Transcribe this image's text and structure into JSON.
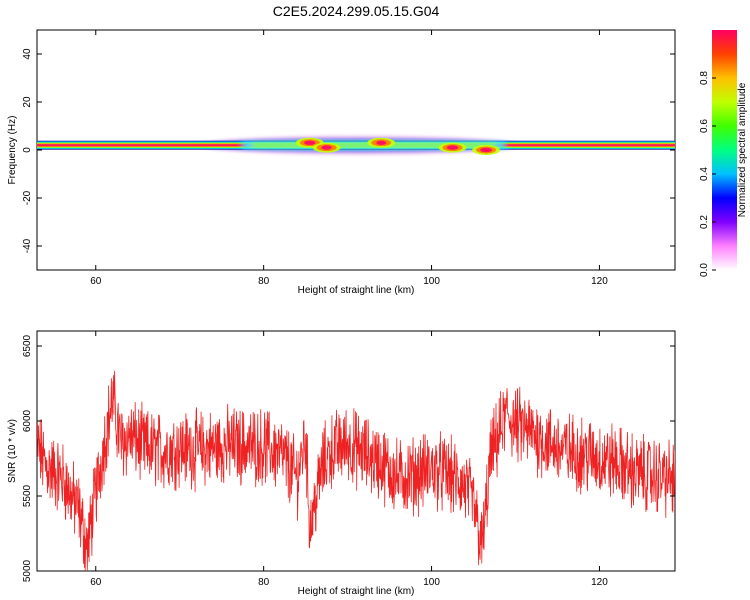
{
  "figure": {
    "title": "C2E5.2024.299.05.15.G04"
  },
  "chart_data": [
    {
      "type": "heatmap",
      "xlabel": "Height of straight line (km)",
      "ylabel": "Frequency (Hz)",
      "xlim": [
        53,
        129
      ],
      "ylim": [
        -50,
        50
      ],
      "x_ticks": [
        60,
        80,
        100,
        120
      ],
      "x_tick_labels": [
        "60",
        "80",
        "100",
        "120"
      ],
      "y_ticks": [
        40,
        20,
        0,
        -20,
        -40
      ],
      "y_tick_labels": [
        "40",
        "20",
        "0",
        "-20",
        "-40"
      ],
      "colorbar": {
        "label": "Normalized spectral amplitude",
        "range": [
          0,
          1
        ],
        "ticks": [
          0.0,
          0.2,
          0.4,
          0.6,
          0.8
        ],
        "tick_labels": [
          "0.0",
          "0.2",
          "0.4",
          "0.6",
          "0.8"
        ],
        "colors": [
          "#ffffff",
          "#ff80ff",
          "#8000ff",
          "#0000ff",
          "#00c0ff",
          "#00ff80",
          "#40ff00",
          "#c0ff00",
          "#ffc000",
          "#ff4000",
          "#ff0060"
        ]
      },
      "band_center_hz": 2,
      "features": [
        {
          "x": 85.5,
          "y": 3,
          "amp": 0.95
        },
        {
          "x": 87.5,
          "y": 1,
          "amp": 0.85
        },
        {
          "x": 94.0,
          "y": 3,
          "amp": 0.8
        },
        {
          "x": 102.5,
          "y": 1,
          "amp": 0.95
        },
        {
          "x": 106.5,
          "y": 0,
          "amp": 1.0
        }
      ],
      "spread_region": [
        75,
        110
      ],
      "grid": false,
      "legend": "colorbar-right"
    },
    {
      "type": "line",
      "xlabel": "Height of straight line (km)",
      "ylabel": "SNR (10 * v/v)",
      "xlim": [
        53,
        129
      ],
      "ylim": [
        5000,
        6600
      ],
      "x_ticks": [
        60,
        80,
        100,
        120
      ],
      "x_tick_labels": [
        "60",
        "80",
        "100",
        "120"
      ],
      "y_ticks": [
        5000,
        5500,
        6000,
        6500
      ],
      "y_tick_labels": [
        "5000",
        "5500",
        "6000",
        "6500"
      ],
      "color": "#ee2222",
      "series": [
        {
          "x": [
            53,
            54,
            56,
            58,
            59,
            60,
            61,
            62,
            63,
            64,
            66,
            68,
            70,
            72,
            74,
            76,
            78,
            80,
            82,
            83,
            84,
            85,
            85.5,
            86,
            87,
            88,
            90,
            92,
            94,
            96,
            98,
            100,
            102,
            104,
            105,
            106,
            106.5,
            107,
            108,
            109,
            110,
            112,
            114,
            116,
            118,
            120,
            122,
            124,
            126,
            128,
            129
          ],
          "y": [
            5850,
            5700,
            5620,
            5400,
            5150,
            5520,
            5850,
            6150,
            5850,
            5900,
            5820,
            5800,
            5820,
            5810,
            5820,
            5840,
            5830,
            5830,
            5780,
            5700,
            5620,
            5900,
            5300,
            5420,
            5700,
            5800,
            5850,
            5780,
            5720,
            5620,
            5640,
            5680,
            5640,
            5560,
            5450,
            5150,
            5420,
            5750,
            5900,
            6050,
            5970,
            5920,
            5850,
            5800,
            5780,
            5750,
            5720,
            5660,
            5640,
            5620,
            5600
          ]
        }
      ],
      "grid": false
    }
  ]
}
